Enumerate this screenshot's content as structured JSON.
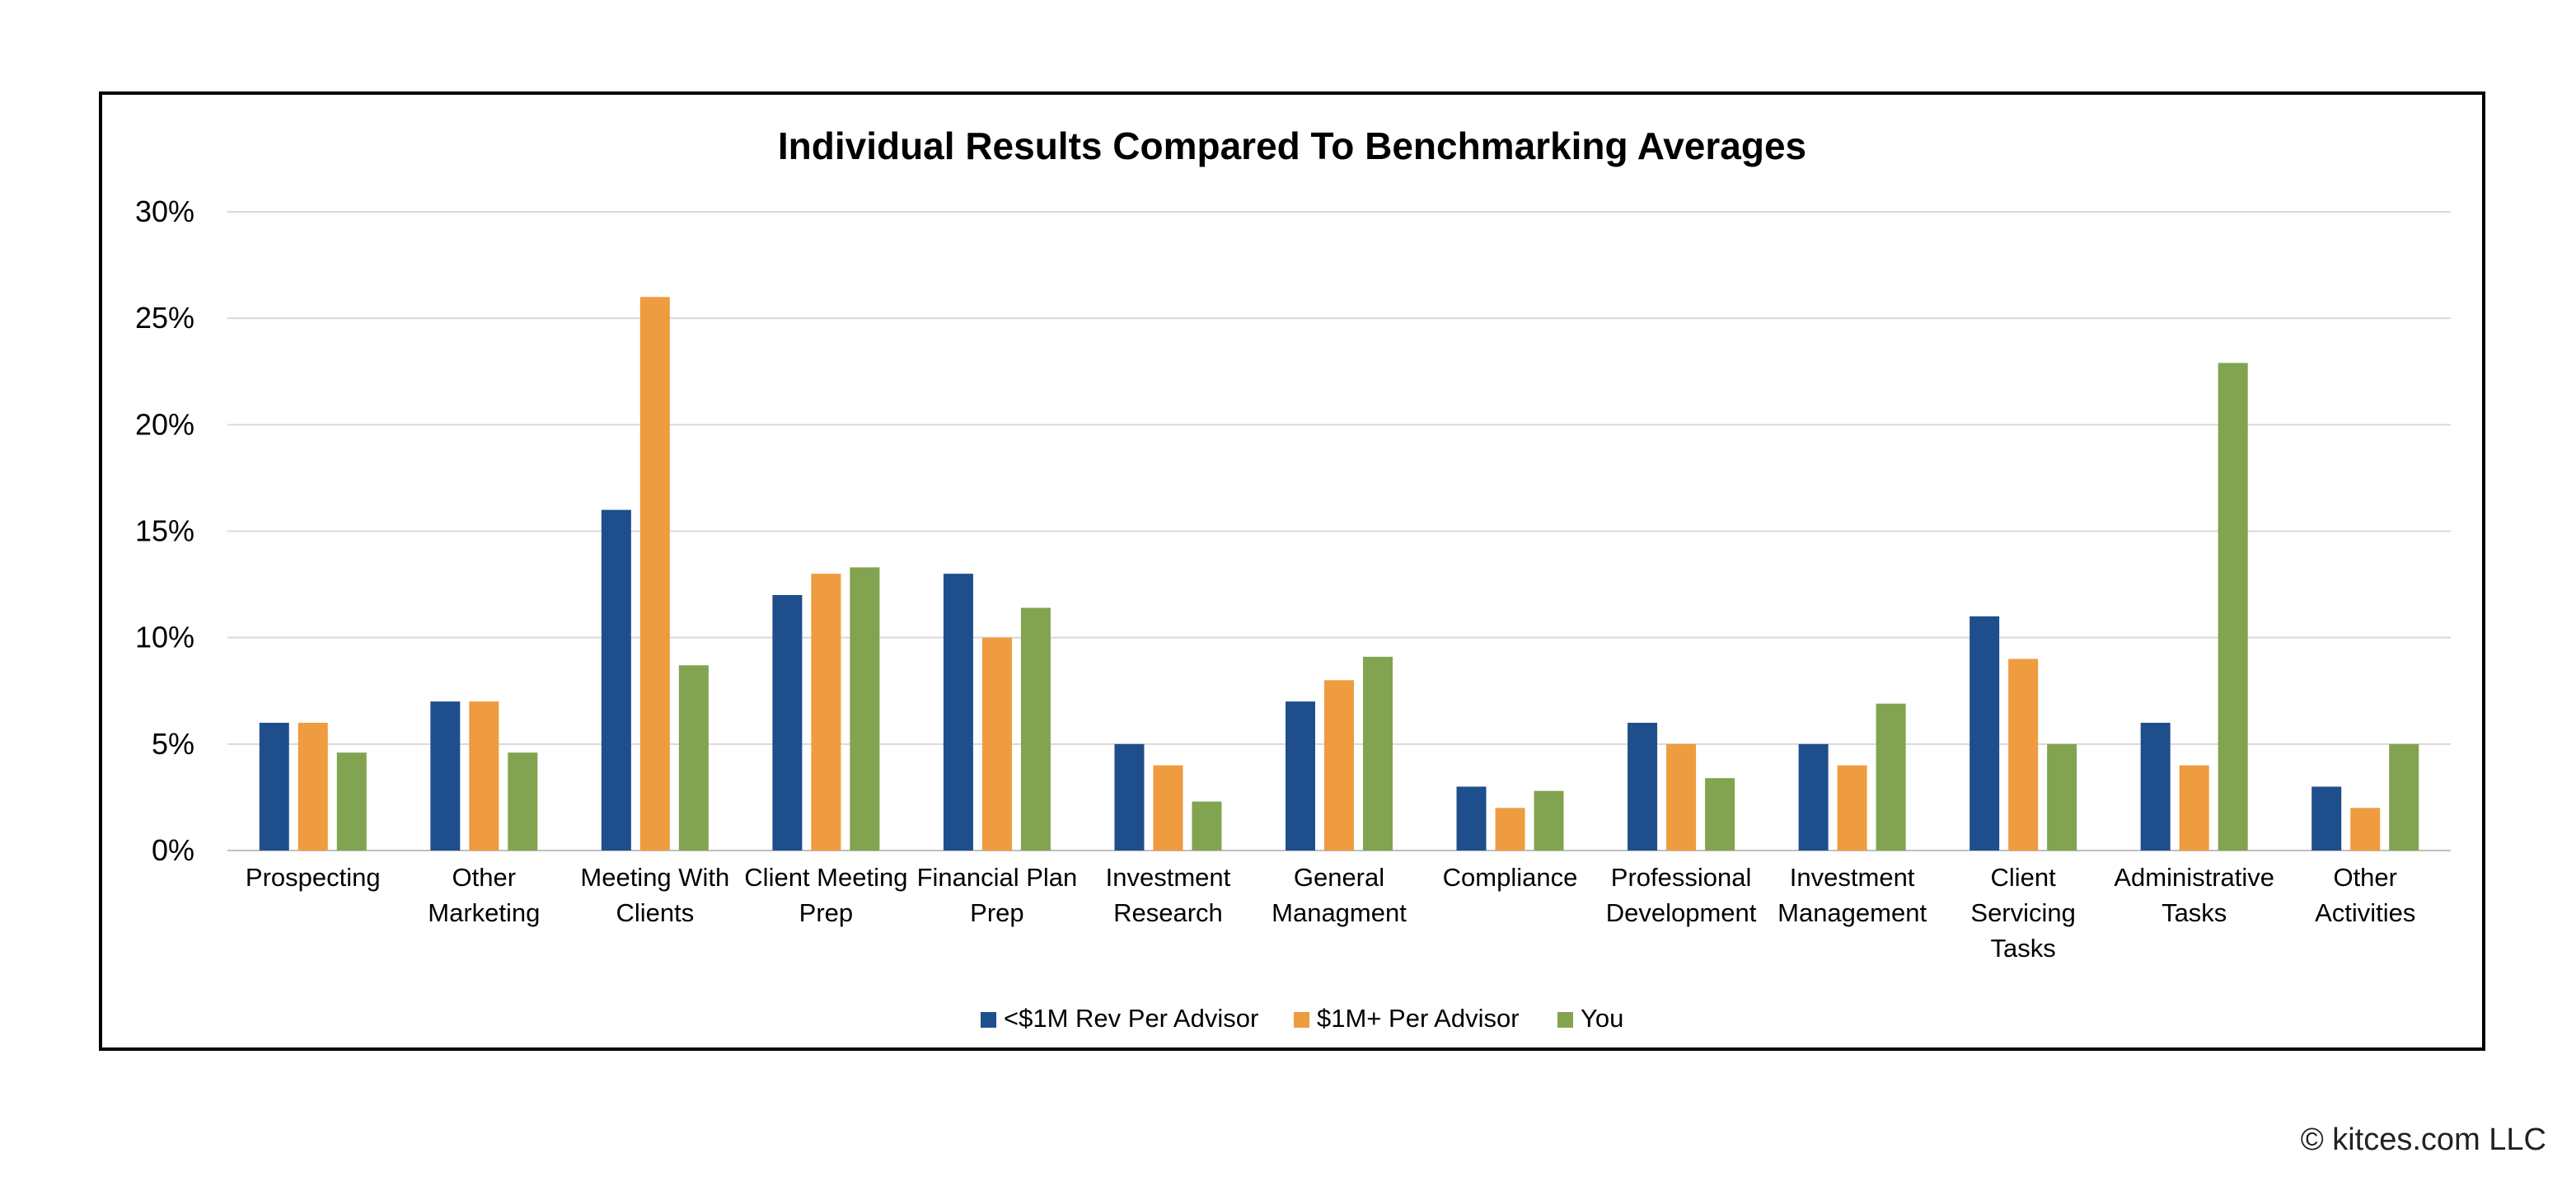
{
  "chart_data": {
    "type": "bar",
    "title": "Individual Results Compared To Benchmarking Averages",
    "xlabel": "",
    "ylabel": "",
    "ylim": [
      0,
      30
    ],
    "yticks": [
      "0%",
      "5%",
      "10%",
      "15%",
      "20%",
      "25%",
      "30%"
    ],
    "grid": true,
    "legend_position": "bottom",
    "categories": [
      [
        "Prospecting"
      ],
      [
        "Other",
        "Marketing"
      ],
      [
        "Meeting With",
        "Clients"
      ],
      [
        "Client Meeting",
        "Prep"
      ],
      [
        "Financial Plan",
        "Prep"
      ],
      [
        "Investment",
        "Research"
      ],
      [
        "General",
        "Managment"
      ],
      [
        "Compliance"
      ],
      [
        "Professional",
        "Development"
      ],
      [
        "Investment",
        "Management"
      ],
      [
        "Client",
        "Servicing",
        "Tasks"
      ],
      [
        "Administrative",
        "Tasks"
      ],
      [
        "Other",
        "Activities"
      ]
    ],
    "series": [
      {
        "name": "<$1M Rev Per Advisor",
        "color": "#1f4e8c",
        "values": [
          6,
          7,
          16,
          12,
          13,
          5,
          7,
          3,
          6,
          5,
          11,
          6,
          3
        ]
      },
      {
        "name": "$1M+ Per Advisor",
        "color": "#ef9b3f",
        "values": [
          6,
          7,
          26,
          13,
          10,
          4,
          8,
          2,
          5,
          4,
          9,
          4,
          2
        ]
      },
      {
        "name": "You",
        "color": "#82a350",
        "values": [
          4.6,
          4.6,
          8.7,
          13.3,
          11.4,
          2.3,
          9.1,
          2.8,
          3.4,
          6.9,
          5,
          22.9,
          5
        ]
      }
    ]
  },
  "footer": {
    "copyright": "© kitces.com LLC"
  }
}
